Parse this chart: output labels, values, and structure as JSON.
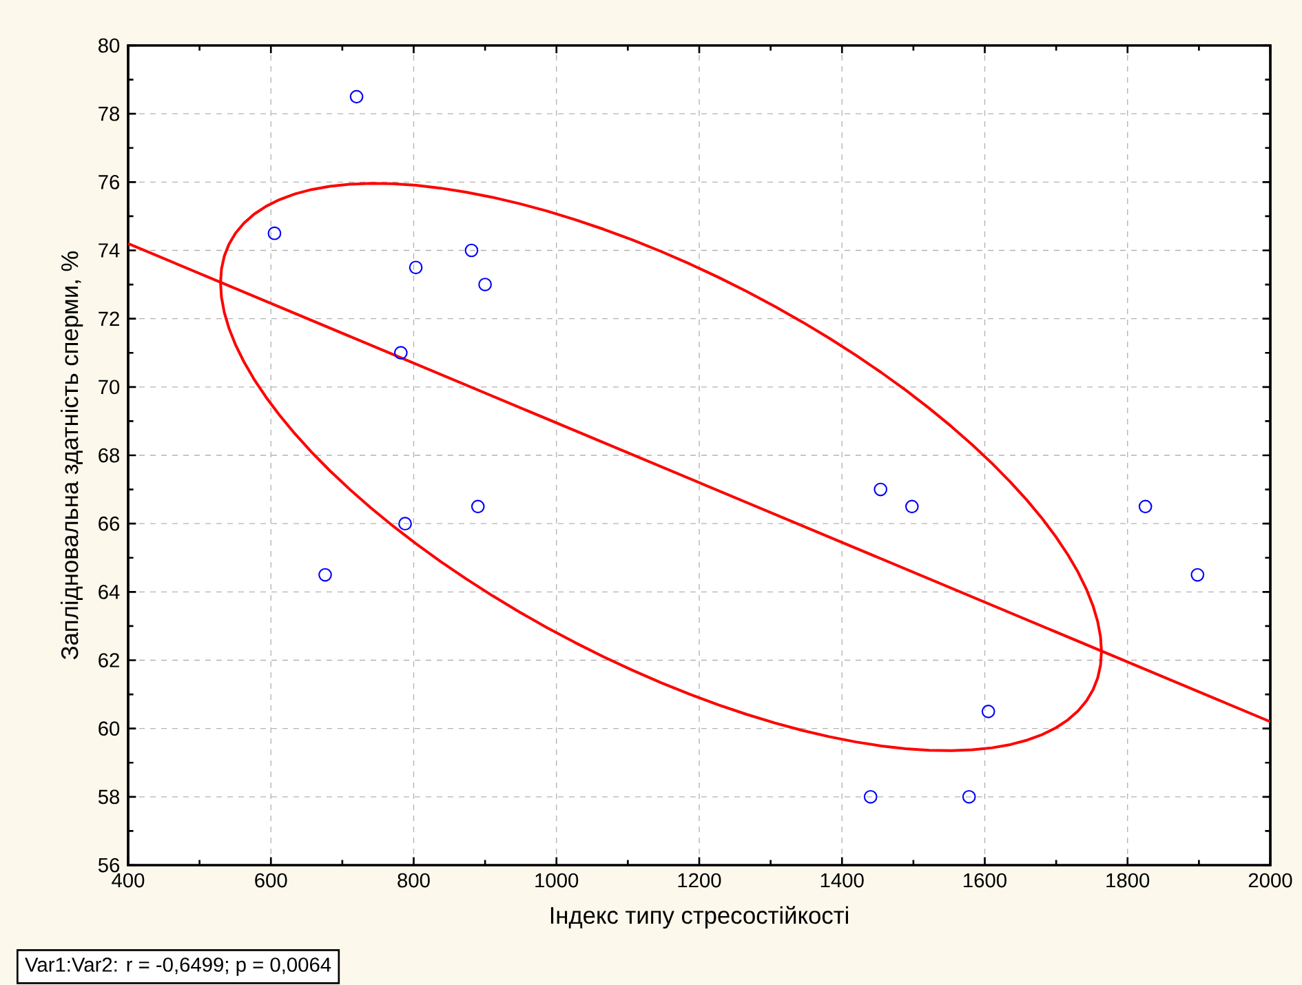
{
  "chart_data": {
    "type": "scatter",
    "xlabel": "Індекс типу стресостійкості",
    "ylabel": "Заплідновальна здатність сперми, %",
    "annotations": [
      "Var1:Var2:   r = -0,6499; p = 0,0064"
    ],
    "xlim": [
      400,
      2000
    ],
    "ylim": [
      56,
      80
    ],
    "xticks": [
      400,
      600,
      800,
      1000,
      1200,
      1400,
      1600,
      1800,
      2000
    ],
    "yticks": [
      56,
      58,
      60,
      62,
      64,
      66,
      68,
      70,
      72,
      74,
      76,
      78,
      80
    ],
    "grid": true,
    "series": [
      {
        "type": "scatter",
        "color": "#0000ff",
        "marker": "circle",
        "x": [
          720,
          605,
          803,
          881,
          900,
          782,
          788,
          890,
          676,
          1454,
          1498,
          1825,
          1898,
          1605,
          1440,
          1578
        ],
        "values": [
          78.5,
          74.5,
          73.5,
          74,
          73,
          71,
          66,
          66.5,
          64.5,
          67,
          66.5,
          66.5,
          64.5,
          60.5,
          58,
          58
        ]
      },
      {
        "type": "line",
        "color": "#ff0000",
        "marker": "none",
        "line_style": "solid",
        "x": [
          400,
          2000
        ],
        "values": [
          74.2,
          60.2
        ]
      }
    ]
  }
}
